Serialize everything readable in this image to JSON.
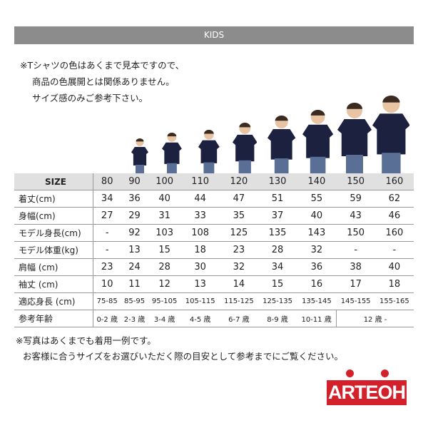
{
  "header": {
    "title": "KIDS"
  },
  "notes": [
    "※Tシャツの色はあくまで見本ですので、",
    "商品の色展開とは関係ありません。",
    "サイズ感のみご参考下さい。"
  ],
  "colors": {
    "header_bg": "#8c8c8c",
    "shirt": "#1c2140",
    "logo": "#d3202a"
  },
  "table": {
    "header": {
      "label": "SIZE",
      "values": [
        "80",
        "90",
        "100",
        "110",
        "120",
        "130",
        "140",
        "150",
        "160"
      ]
    },
    "rows": [
      {
        "label": "着丈(cm)",
        "values": [
          "34",
          "36",
          "40",
          "44",
          "47",
          "51",
          "55",
          "59",
          "62"
        ]
      },
      {
        "label": "身幅(cm)",
        "values": [
          "27",
          "29",
          "31",
          "33",
          "35",
          "37",
          "40",
          "43",
          "46"
        ]
      },
      {
        "label": "モデル身長(cm)",
        "values": [
          "-",
          "92",
          "103",
          "108",
          "125",
          "135",
          "143",
          "150",
          "160"
        ]
      },
      {
        "label": "モデル体重(kg)",
        "values": [
          "-",
          "13",
          "15",
          "18",
          "23",
          "28",
          "32",
          "-",
          "-"
        ]
      },
      {
        "label": "肩幅 (cm)",
        "values": [
          "23",
          "24",
          "28",
          "30",
          "32",
          "34",
          "36",
          "38",
          "40"
        ]
      },
      {
        "label": "袖丈 (cm)",
        "values": [
          "10",
          "11",
          "12",
          "13",
          "14",
          "15",
          "16",
          "17",
          "18"
        ]
      },
      {
        "label": "適応身長 (cm)",
        "values": [
          "75-85",
          "85-95",
          "95-105",
          "105-115",
          "115-125",
          "125-135",
          "135-145",
          "145-155",
          "155-165"
        ]
      }
    ],
    "age_row": {
      "label": "参考年齢",
      "values": [
        "0-2 歳",
        "2-3 歳",
        "3-4 歳",
        "4-5 歳",
        "6-7 歳",
        "8-9 歳",
        "10-11 歳"
      ],
      "last": "12 歳 -"
    }
  },
  "footer": [
    "※写真はあくまでも着用一例です。",
    "お客様に合うサイズをお選びいただく際の目安として参考までにご覧ください。"
  ],
  "logo": {
    "text": "ARTEOH"
  }
}
